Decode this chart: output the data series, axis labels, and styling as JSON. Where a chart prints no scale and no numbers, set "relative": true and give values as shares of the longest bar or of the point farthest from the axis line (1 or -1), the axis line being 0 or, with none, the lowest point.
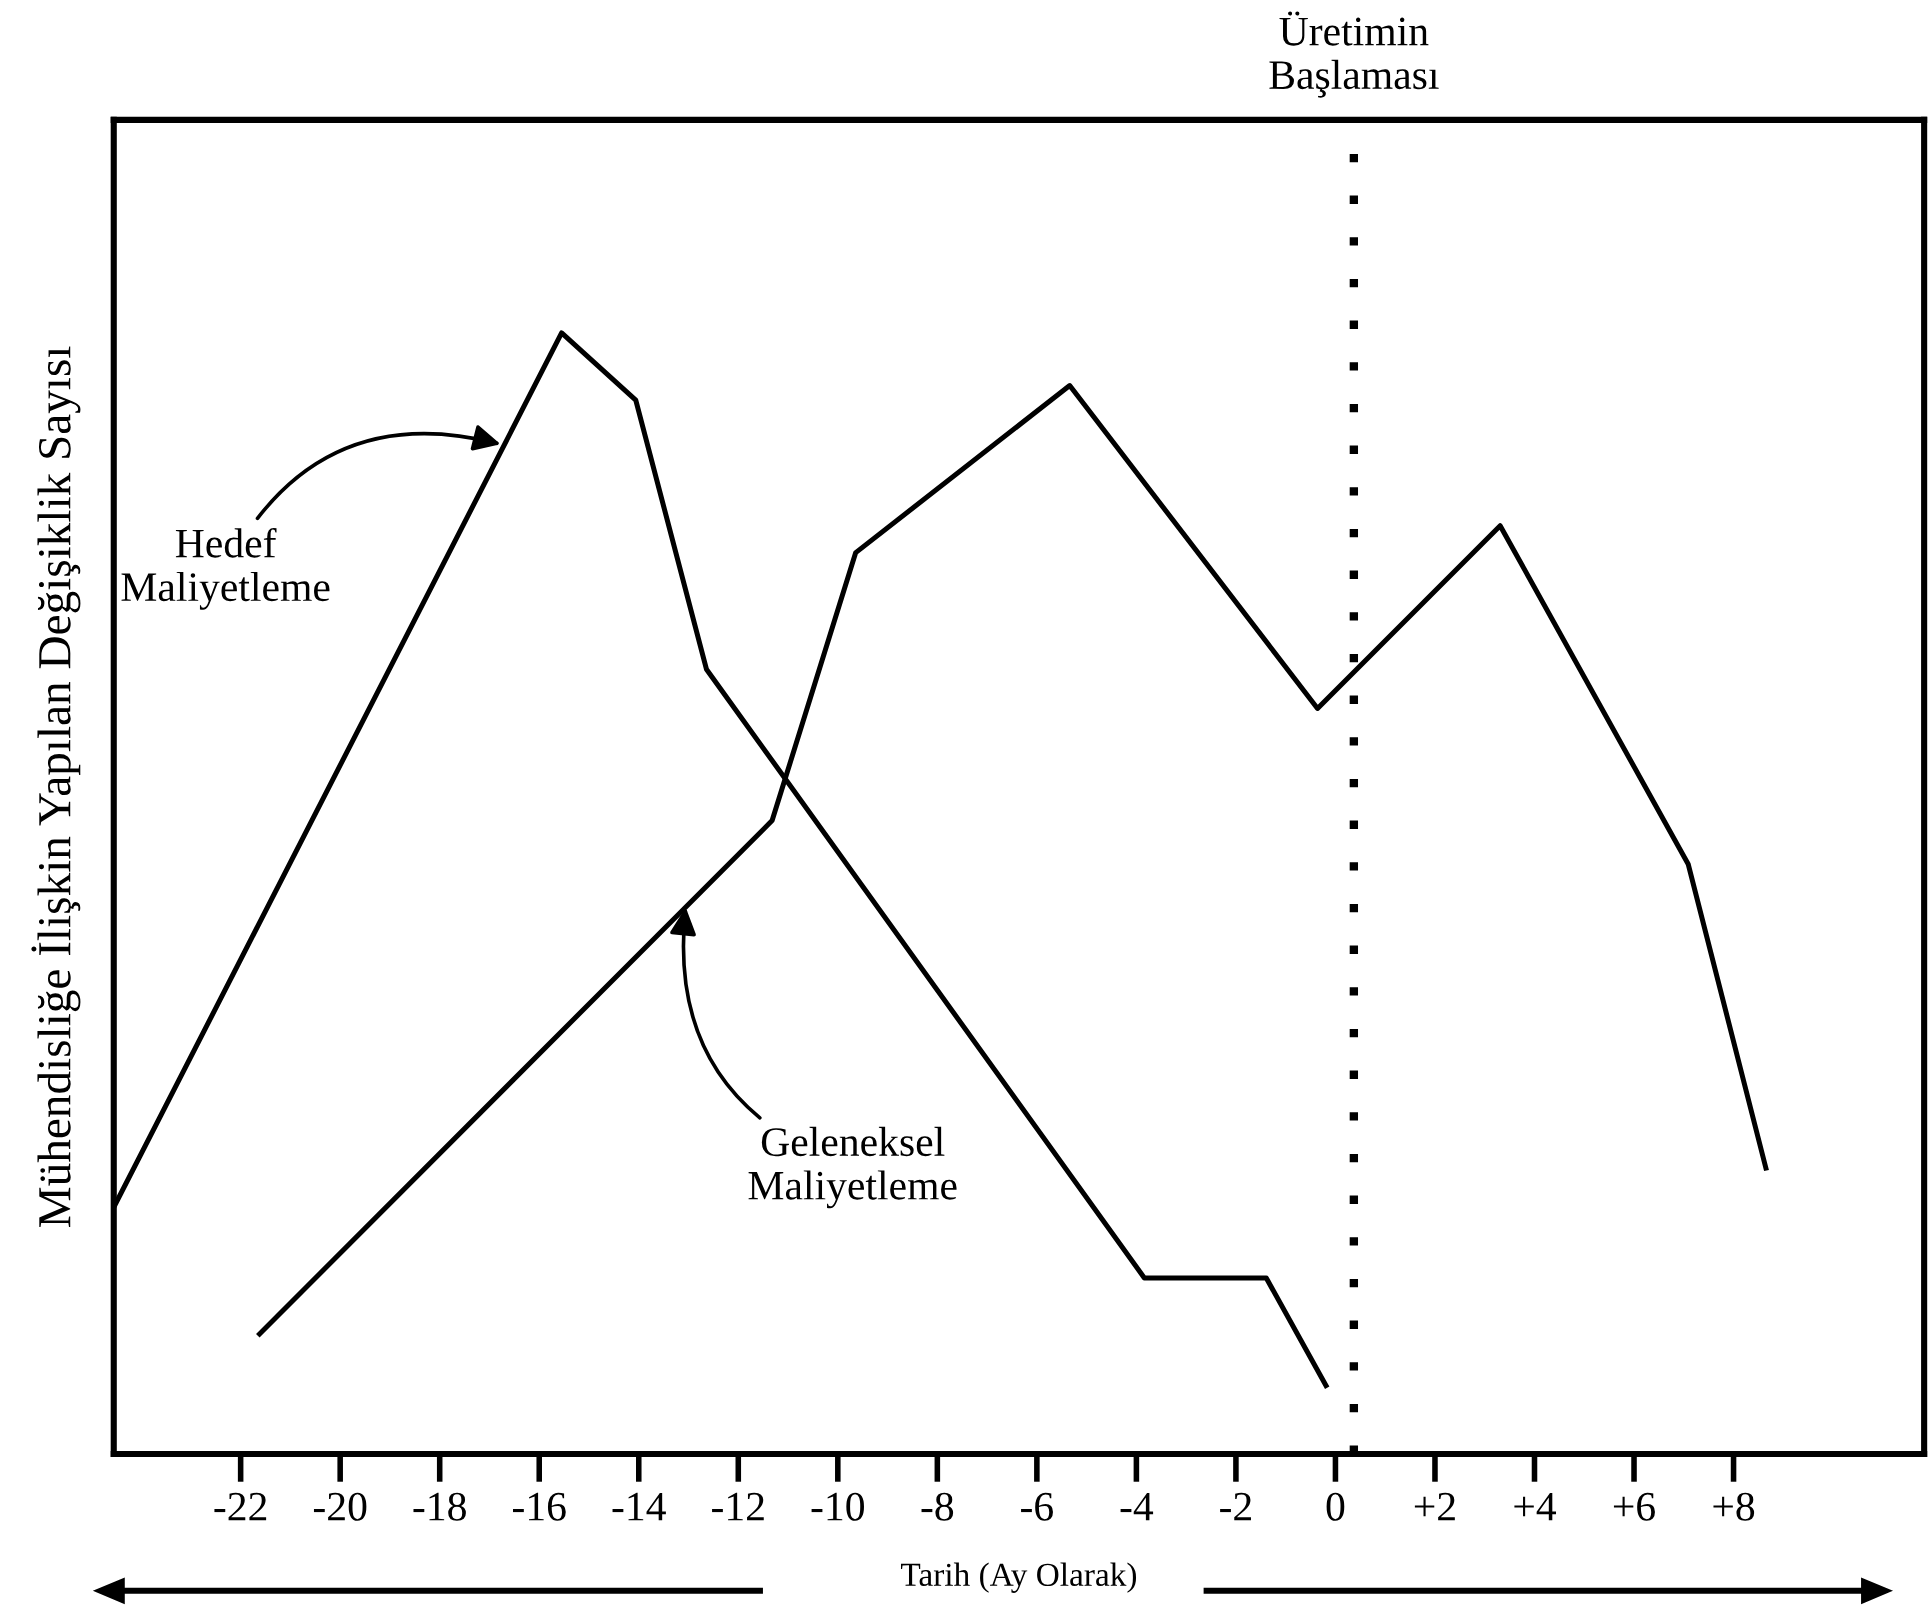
{
  "chart_data": {
    "type": "line",
    "relative": true,
    "xlabel": "Tarih (Ay Olarak)",
    "ylabel": "Mühendisliğe İlişkin Yapılan Değişiklik Sayısı",
    "xlim": [
      -24.55,
      11.83
    ],
    "xticks": [
      -22,
      -20,
      -18,
      -16,
      -14,
      -12,
      -10,
      -8,
      -6,
      -4,
      -2,
      0,
      {
        "value": 2,
        "label": "+2"
      },
      {
        "value": 4,
        "label": "+4"
      },
      {
        "value": 6,
        "label": "+6"
      },
      {
        "value": 8,
        "label": "+8"
      }
    ],
    "series": [
      {
        "color": "#000000",
        "x": [
          -24.55,
          -15.55,
          -14.06,
          -12.64,
          -3.84,
          -1.39,
          -0.19
        ],
        "values": [
          0.22,
          1.0,
          0.94,
          0.7,
          0.157,
          0.157,
          0.061
        ]
      },
      {
        "color": "#000000",
        "x": [
          -21.62,
          -11.32,
          -9.64,
          -5.34,
          -0.36,
          3.31,
          7.09,
          8.65
        ],
        "values": [
          0.107,
          0.565,
          0.804,
          0.953,
          0.665,
          0.828,
          0.526,
          0.255
        ]
      }
    ],
    "ref_lines": [
      {
        "axis": "x",
        "value": 0.37,
        "label": "Üretimin\nBaşlaması",
        "color": "#000000",
        "line_style": "dotted"
      }
    ],
    "annotations": [
      {
        "text": "Hedef\nMaliyetleme",
        "x": -16.72,
        "y": 0.9
      },
      {
        "text": "Geleneksel\nMaliyetleme",
        "x": -13.05,
        "y": 0.49
      }
    ],
    "marker": "none",
    "line_style": "solid",
    "grid": false,
    "legend": false
  }
}
